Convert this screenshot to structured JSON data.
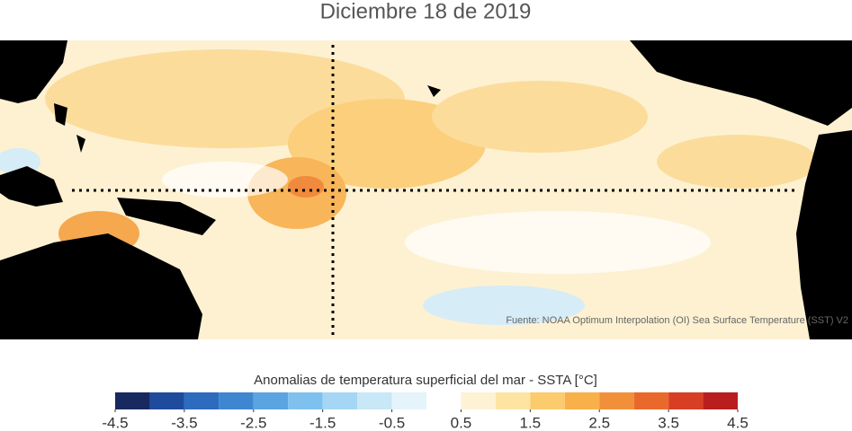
{
  "title": "Diciembre 18 de 2019",
  "map": {
    "source": "Fuente: NOAA Optimum Interpolation (OI) Sea Surface Temperature (SST) V2"
  },
  "colorbar": {
    "label": "Anomalias de temperatura superficial del mar - SSTA  [°C]",
    "bins": [
      -4.5,
      -4,
      -3.5,
      -3,
      -2.5,
      -2,
      -1.5,
      -1,
      -0.5,
      0,
      0.5,
      1,
      1.5,
      2,
      2.5,
      3,
      3.5,
      4,
      4.5
    ],
    "colors": [
      "#17295e",
      "#1f4b9c",
      "#2d6bbf",
      "#3f86d1",
      "#5ba4e1",
      "#7fc1ee",
      "#a5d7f4",
      "#c8e7f7",
      "#e4f4fa",
      "#ffffff",
      "#fdf2d4",
      "#fde4a3",
      "#fbcb6e",
      "#f8b04a",
      "#f2903a",
      "#e9692c",
      "#d83e23",
      "#b91e1f"
    ],
    "ticks": [
      -4.5,
      -3.5,
      -2.5,
      -1.5,
      -0.5,
      0.5,
      1.5,
      2.5,
      3.5,
      4.5
    ]
  }
}
